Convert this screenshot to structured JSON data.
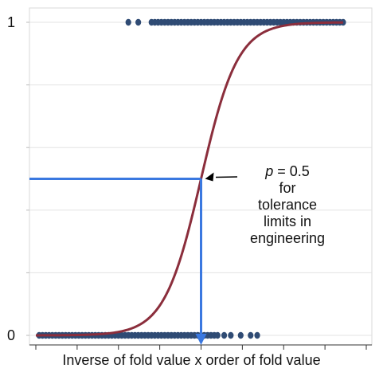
{
  "chart_data": {
    "type": "scatter",
    "title": "",
    "xlabel": "Inverse of fold value x order of fold value",
    "ylabel": "",
    "y_ticks": [
      {
        "value": 0,
        "label": "0"
      },
      {
        "value": 1,
        "label": "1"
      }
    ],
    "x_range": [
      0,
      1
    ],
    "y_range": [
      0,
      1
    ],
    "grid": true,
    "series": [
      {
        "kind": "points",
        "description_y": 1,
        "x": [
          0.28,
          0.31,
          0.35,
          0.36,
          0.37,
          0.38,
          0.39,
          0.4,
          0.41,
          0.42,
          0.43,
          0.44,
          0.45,
          0.46,
          0.47,
          0.48,
          0.49,
          0.5,
          0.51,
          0.52,
          0.53,
          0.54,
          0.55,
          0.56,
          0.57,
          0.58,
          0.59,
          0.6,
          0.61,
          0.62,
          0.63,
          0.64,
          0.65,
          0.66,
          0.67,
          0.68,
          0.69,
          0.7,
          0.71,
          0.72,
          0.73,
          0.74,
          0.75,
          0.76,
          0.77,
          0.78,
          0.79,
          0.8,
          0.81,
          0.82,
          0.83,
          0.84,
          0.85,
          0.86,
          0.87,
          0.88,
          0.89,
          0.9,
          0.91,
          0.92,
          0.93
        ],
        "y": 1
      },
      {
        "kind": "points",
        "x": [
          0.01,
          0.02,
          0.03,
          0.04,
          0.05,
          0.06,
          0.07,
          0.08,
          0.09,
          0.1,
          0.11,
          0.12,
          0.13,
          0.14,
          0.15,
          0.16,
          0.17,
          0.18,
          0.19,
          0.2,
          0.21,
          0.22,
          0.23,
          0.24,
          0.25,
          0.26,
          0.27,
          0.28,
          0.29,
          0.3,
          0.31,
          0.32,
          0.33,
          0.34,
          0.35,
          0.36,
          0.37,
          0.38,
          0.39,
          0.4,
          0.41,
          0.42,
          0.43,
          0.44,
          0.45,
          0.46,
          0.47,
          0.48,
          0.49,
          0.5,
          0.51,
          0.52,
          0.53,
          0.54,
          0.55,
          0.57,
          0.59,
          0.62,
          0.65,
          0.67
        ],
        "y": 0
      }
    ],
    "logistic_curve": {
      "midpoint_x": 0.5,
      "steepness": 18,
      "x_range": [
        0,
        0.93
      ]
    },
    "reference_lines": {
      "horizontal_y": 0.5,
      "vertical_x": 0.5
    },
    "colors": {
      "points": "#2f4b74",
      "curve": "#8b2e3c",
      "reference": "#3a78e0",
      "grid": "#e3e3e3",
      "axis": "#333333"
    }
  },
  "annotation": {
    "lines": [
      "= 0.5",
      "for",
      "tolerance",
      "limits in",
      "engineering"
    ],
    "p_symbol": "p"
  },
  "x_tick_count": 9
}
